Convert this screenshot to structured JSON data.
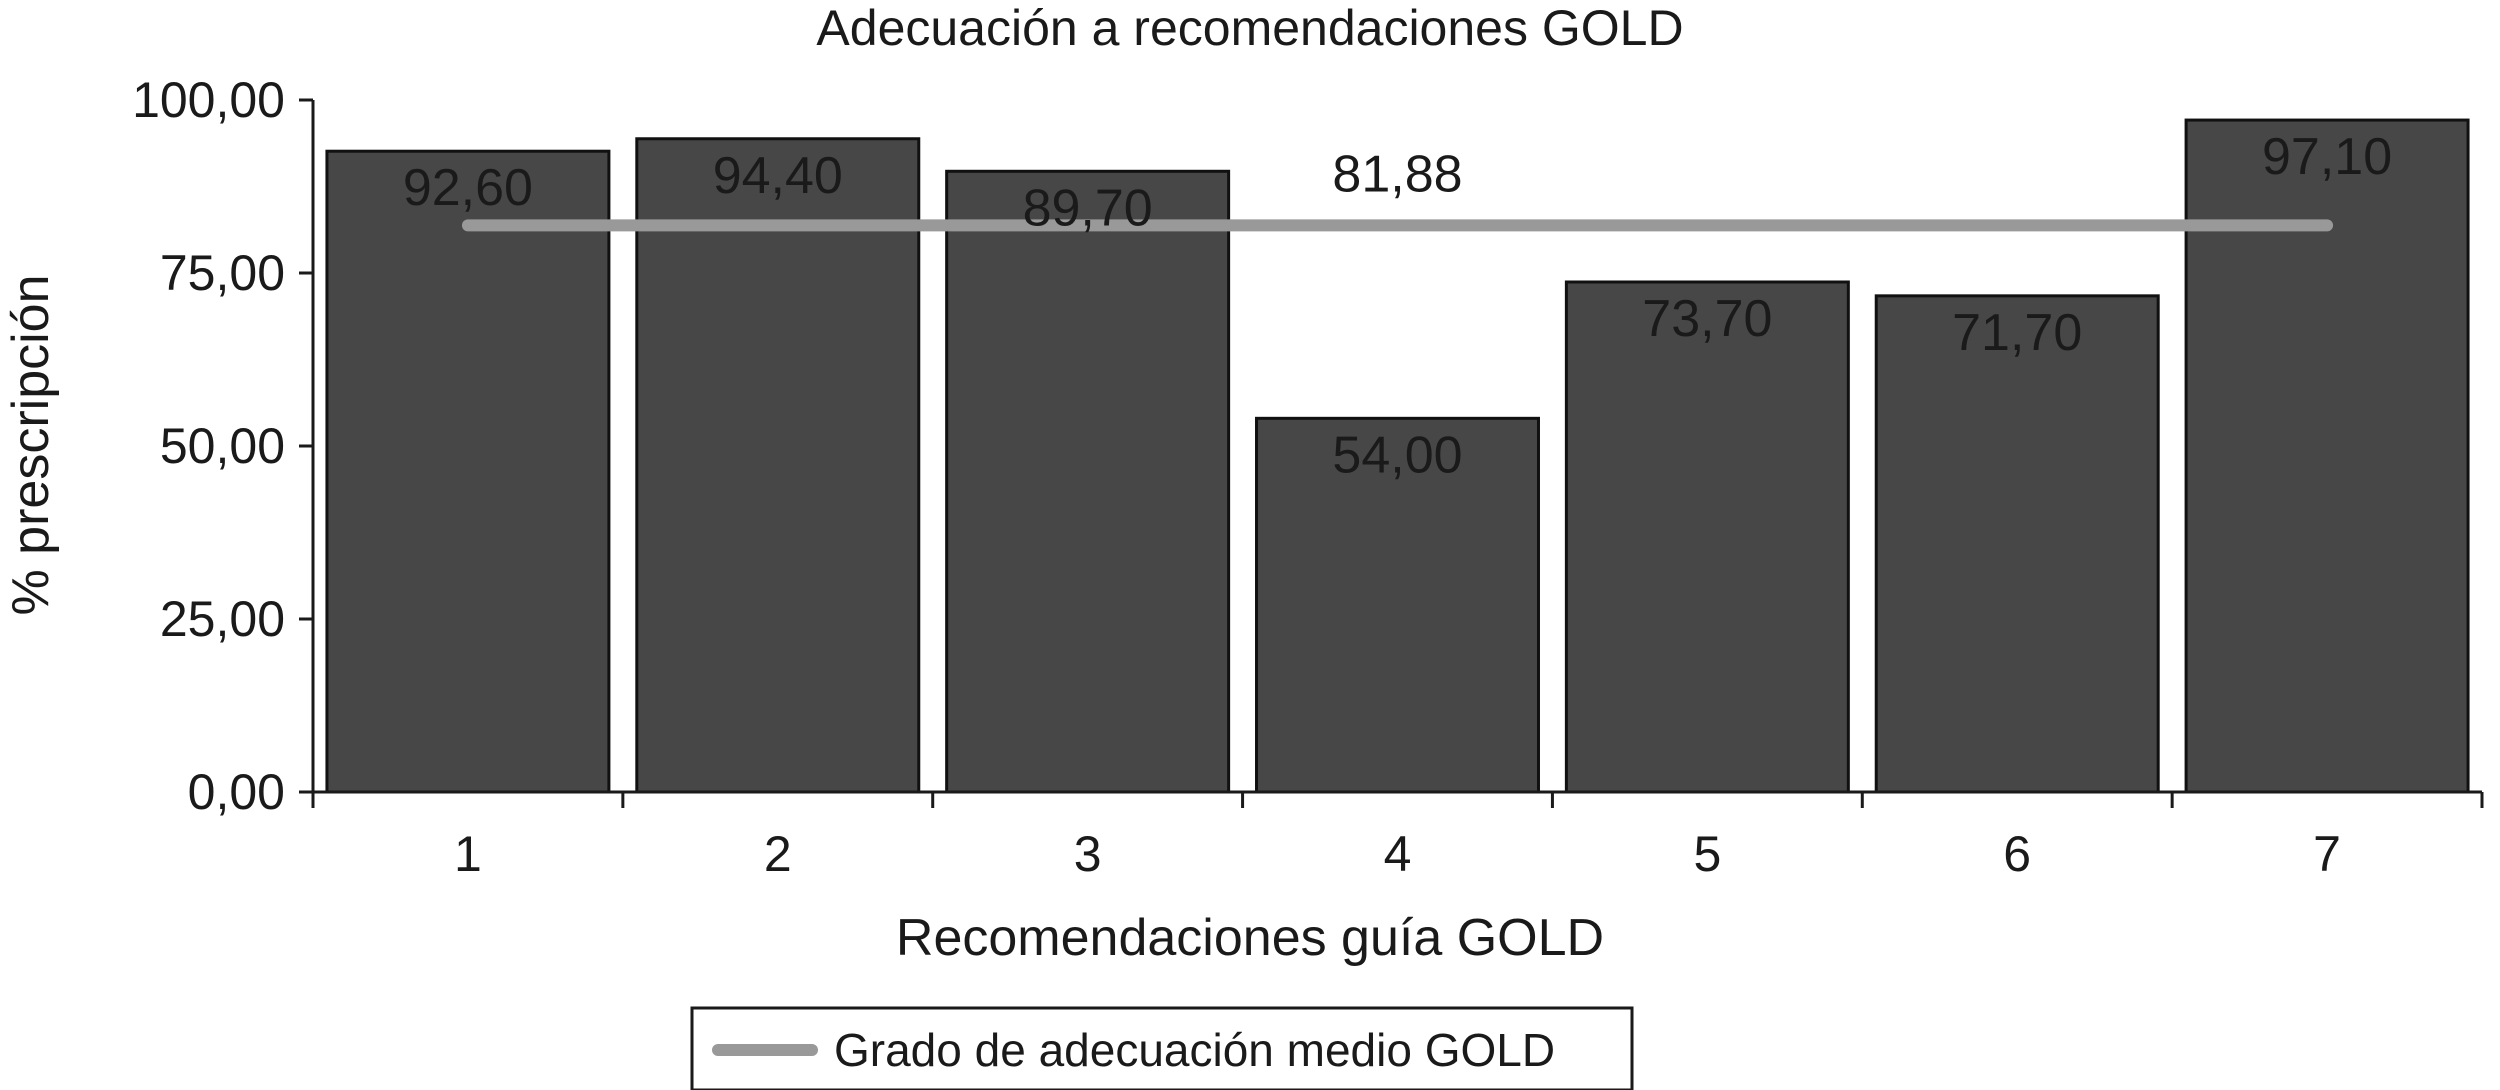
{
  "chart_data": {
    "type": "bar",
    "title": "Adecuación a recomendaciones GOLD",
    "xlabel": "Recomendaciones guía GOLD",
    "ylabel": "% prescripción",
    "categories": [
      "1",
      "2",
      "3",
      "4",
      "5",
      "6",
      "7"
    ],
    "series": [
      {
        "values": [
          92.6,
          94.4,
          89.7,
          54.0,
          73.7,
          71.7,
          97.1
        ],
        "data_labels": [
          "92,60",
          "94,40",
          "89,70",
          "54,00",
          "73,70",
          "71,70",
          "97,10"
        ],
        "color": "#474747"
      }
    ],
    "reference_line": {
      "name": "Grado de adecuación medio GOLD",
      "value": 81.88,
      "label": "81,88",
      "color": "#999999"
    },
    "ylim": [
      0,
      100
    ],
    "yticks": [
      0,
      25,
      50,
      75,
      100
    ],
    "ytick_labels": [
      "0,00",
      "25,00",
      "50,00",
      "75,00",
      "100,00"
    ],
    "grid": false,
    "legend_position": "bottom"
  }
}
